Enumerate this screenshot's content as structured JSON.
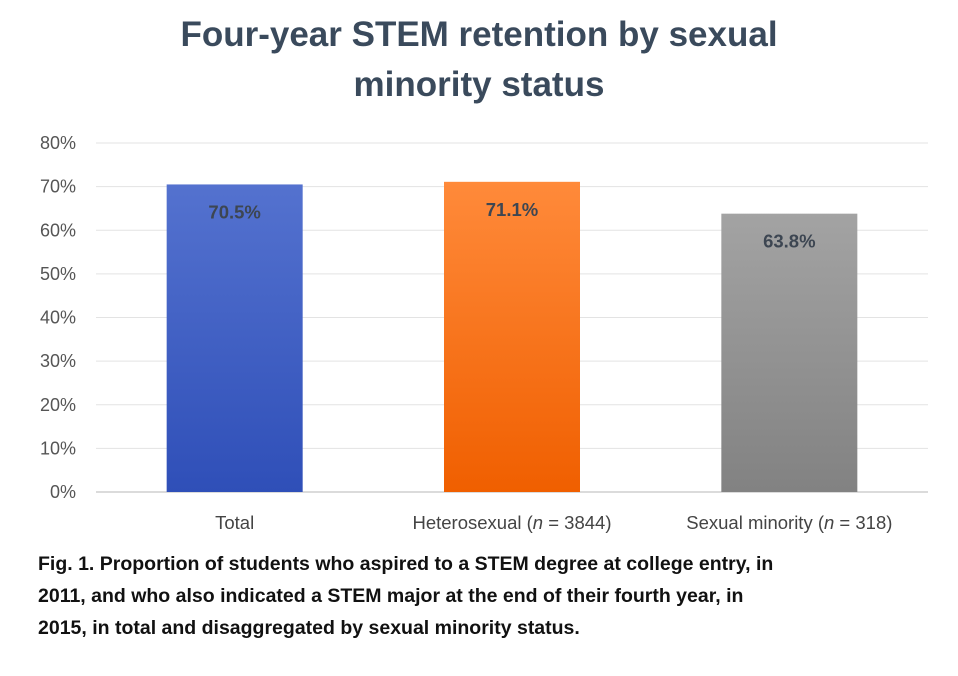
{
  "chart_data": {
    "type": "bar",
    "title_lines": [
      "Four-year STEM retention by sexual",
      "minority status"
    ],
    "categories": [
      {
        "label": "Total",
        "n_prefix": "",
        "n_italic": "",
        "n_suffix": ""
      },
      {
        "label": "Heterosexual",
        "n_prefix": " (",
        "n_italic": "n",
        "n_suffix": " = 3844)"
      },
      {
        "label": "Sexual minority",
        "n_prefix": " (",
        "n_italic": "n",
        "n_suffix": " = 318)"
      }
    ],
    "values": [
      70.5,
      71.1,
      63.8
    ],
    "data_labels": [
      "70.5%",
      "71.1%",
      "63.8%"
    ],
    "colors": [
      {
        "top": "#5472cf",
        "bottom": "#2f4fb8"
      },
      {
        "top": "#ff8a3a",
        "bottom": "#f05f00"
      },
      {
        "top": "#a3a3a3",
        "bottom": "#828282"
      }
    ],
    "yticks": [
      "0%",
      "10%",
      "20%",
      "30%",
      "40%",
      "50%",
      "60%",
      "70%",
      "80%"
    ],
    "ylim": [
      0,
      80
    ],
    "grid": true,
    "xlabel": "",
    "ylabel": ""
  },
  "caption": {
    "lines": [
      "Fig. 1.  Proportion of students who aspired to a STEM degree at college entry, in",
      "2011, and who also indicated a STEM major at the end of their fourth year, in",
      "2015, in total and disaggregated by sexual minority status."
    ]
  }
}
